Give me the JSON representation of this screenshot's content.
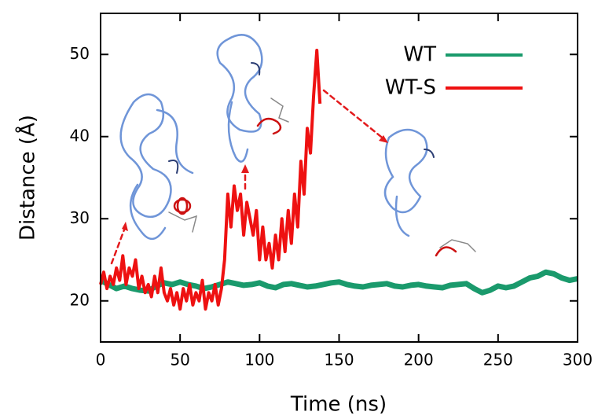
{
  "chart_data": {
    "type": "line",
    "x_label": "Time (ns)",
    "y_label": "Distance (Å)",
    "xlim": [
      0,
      300
    ],
    "xticks": [
      0,
      50,
      100,
      150,
      200,
      250,
      300
    ],
    "ylim": [
      15,
      55
    ],
    "yticks": [
      20,
      30,
      40,
      50
    ],
    "legend": "upper right",
    "series": [
      {
        "name": "WT",
        "color": "#1a9a6c",
        "x": [
          0,
          5,
          10,
          15,
          20,
          25,
          30,
          35,
          40,
          45,
          50,
          55,
          60,
          65,
          70,
          75,
          80,
          85,
          90,
          95,
          100,
          105,
          110,
          115,
          120,
          125,
          130,
          135,
          140,
          145,
          150,
          155,
          160,
          165,
          170,
          175,
          180,
          185,
          190,
          195,
          200,
          205,
          210,
          215,
          220,
          225,
          230,
          235,
          240,
          245,
          250,
          255,
          260,
          265,
          270,
          275,
          280,
          285,
          290,
          295,
          300
        ],
        "values": [
          22.5,
          22,
          21.5,
          21.8,
          21.5,
          21.3,
          21.2,
          21.8,
          22.2,
          22,
          22.3,
          22,
          21.8,
          21.5,
          21.7,
          22,
          22.3,
          22.1,
          21.9,
          22,
          22.2,
          21.8,
          21.6,
          22,
          22.1,
          21.9,
          21.7,
          21.8,
          22,
          22.2,
          22.3,
          22,
          21.8,
          21.7,
          21.9,
          22,
          22.1,
          21.8,
          21.7,
          21.9,
          22,
          21.8,
          21.7,
          21.6,
          21.9,
          22,
          22.1,
          21.5,
          21,
          21.3,
          21.8,
          21.6,
          21.8,
          22.3,
          22.8,
          23,
          23.5,
          23.3,
          22.8,
          22.5,
          22.7
        ]
      },
      {
        "name": "WT-S",
        "color": "#ee1111",
        "x": [
          0,
          2,
          4,
          6,
          8,
          10,
          12,
          14,
          16,
          18,
          20,
          22,
          24,
          26,
          28,
          30,
          32,
          34,
          36,
          38,
          40,
          42,
          44,
          46,
          48,
          50,
          52,
          54,
          56,
          58,
          60,
          62,
          64,
          66,
          68,
          70,
          72,
          74,
          76,
          78,
          80,
          82,
          84,
          86,
          88,
          90,
          92,
          94,
          96,
          98,
          100,
          102,
          104,
          106,
          108,
          110,
          112,
          114,
          116,
          118,
          120,
          122,
          124,
          126,
          128,
          130,
          132,
          134,
          136,
          138
        ],
        "values": [
          22,
          23.5,
          21.5,
          23,
          22,
          24,
          22.5,
          25.5,
          22,
          24,
          23,
          25,
          21.5,
          23,
          21,
          22,
          20.5,
          23,
          21,
          24,
          21,
          20,
          21.5,
          19.5,
          21,
          19,
          21.5,
          20,
          22,
          19.5,
          21,
          20,
          22.5,
          19,
          21,
          20,
          22,
          19.5,
          21.5,
          25,
          33,
          29,
          34,
          31,
          33,
          28,
          32,
          30,
          28,
          31,
          25,
          29,
          25,
          27,
          24,
          28,
          25,
          30,
          26,
          31,
          27,
          33,
          29,
          37,
          33,
          41,
          38,
          45,
          50.5,
          44
        ]
      }
    ]
  }
}
